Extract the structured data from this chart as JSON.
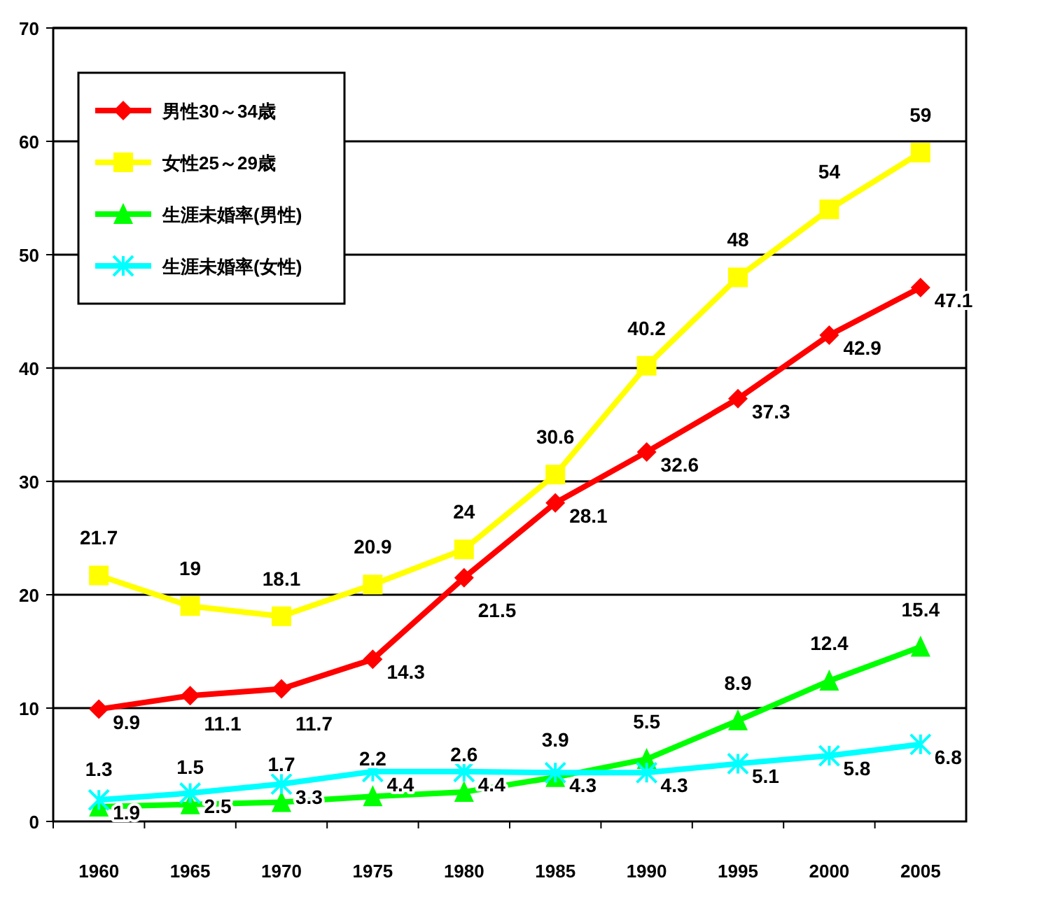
{
  "chart_data": {
    "type": "line",
    "categories": [
      "1960",
      "1965",
      "1970",
      "1975",
      "1980",
      "1985",
      "1990",
      "1995",
      "2000",
      "2005"
    ],
    "series": [
      {
        "name": "男性30～34歳",
        "color": "#ff0000",
        "marker": "diamond",
        "values": [
          9.9,
          11.1,
          11.7,
          14.3,
          21.5,
          28.1,
          32.6,
          37.3,
          42.9,
          47.1
        ]
      },
      {
        "name": "女性25～29歳",
        "color": "#ffff00",
        "marker": "square",
        "values": [
          21.7,
          19,
          18.1,
          20.9,
          24,
          30.6,
          40.2,
          48,
          54,
          59
        ]
      },
      {
        "name": "生涯未婚率(男性)",
        "color": "#00ff00",
        "marker": "triangle",
        "values": [
          1.3,
          1.5,
          1.7,
          2.2,
          2.6,
          3.9,
          5.5,
          8.9,
          12.4,
          15.4
        ]
      },
      {
        "name": "生涯未婚率(女性)",
        "color": "#00ffff",
        "marker": "cross",
        "values": [
          1.9,
          2.5,
          3.3,
          4.4,
          4.4,
          4.3,
          4.3,
          5.1,
          5.8,
          6.8
        ]
      }
    ],
    "ylim": [
      0,
      70
    ],
    "yticks": [
      0,
      10,
      20,
      30,
      40,
      50,
      60,
      70
    ],
    "grid": "y",
    "legend": "top left",
    "data_labels": true,
    "line_style": "solid"
  }
}
